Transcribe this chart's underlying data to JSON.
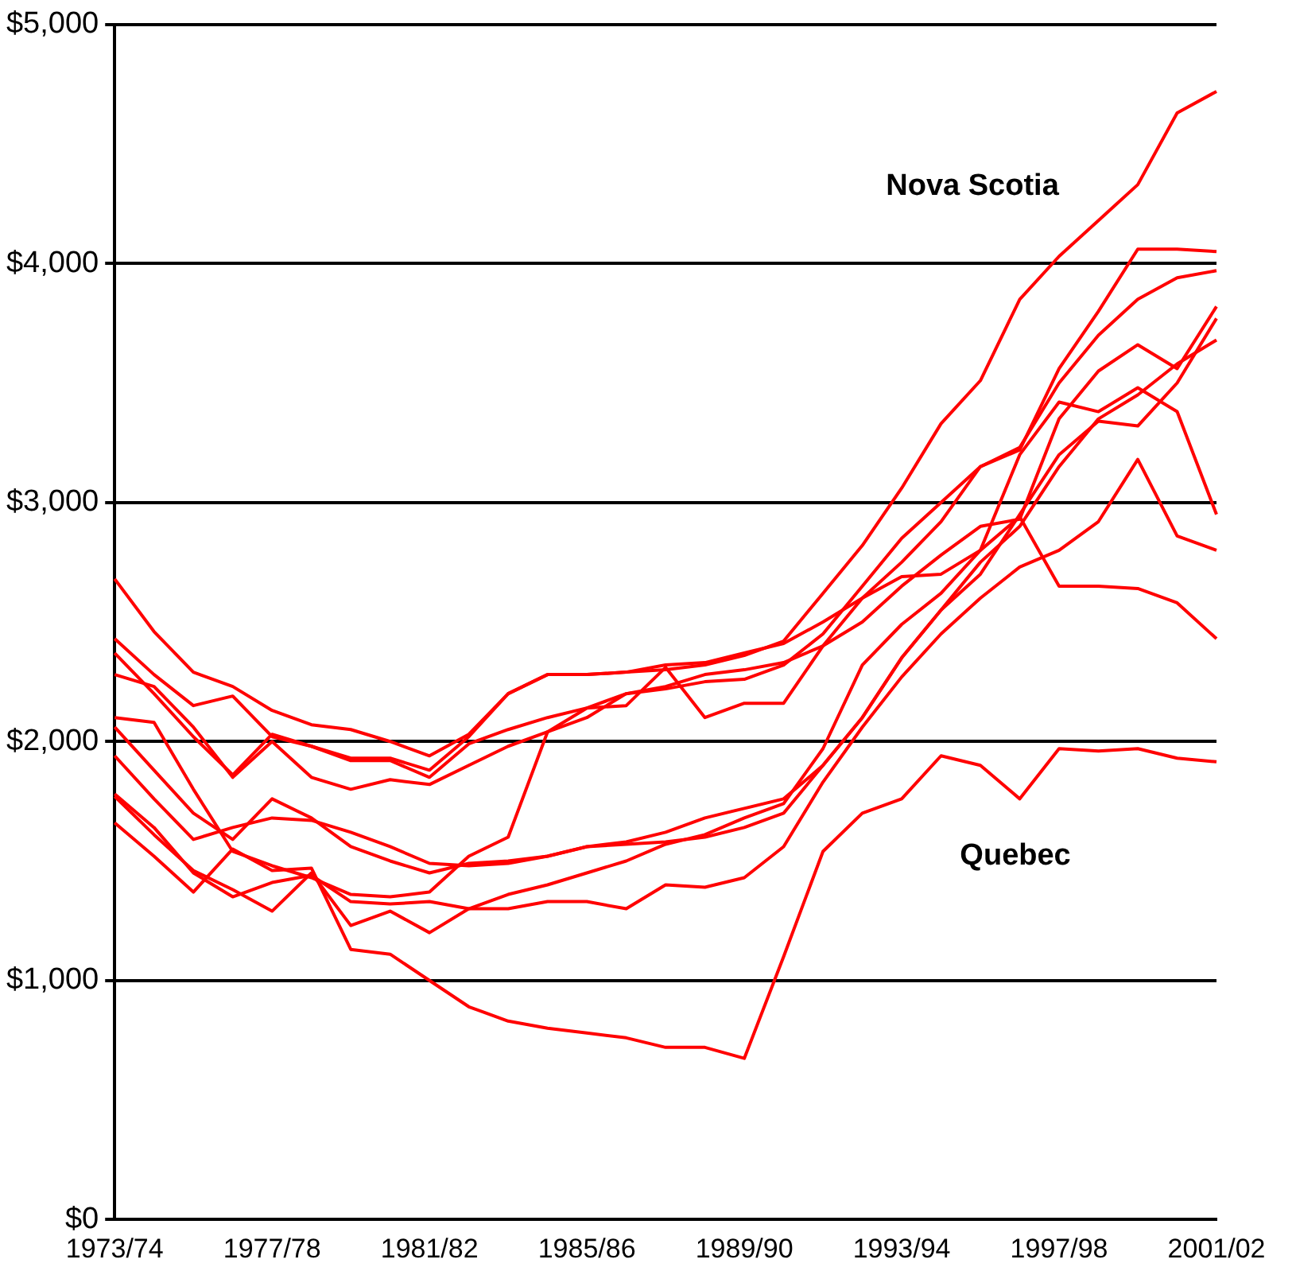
{
  "chart_data": {
    "type": "line",
    "categories": [
      "1973/74",
      null,
      null,
      null,
      "1977/78",
      null,
      null,
      null,
      "1981/82",
      null,
      null,
      null,
      "1985/86",
      null,
      null,
      null,
      "1989/90",
      null,
      null,
      null,
      "1993/94",
      null,
      null,
      null,
      "1997/98",
      null,
      null,
      null,
      "2001/02"
    ],
    "series": [
      {
        "name": "Nova Scotia",
        "color": "#ff0000",
        "values": [
          2680,
          2460,
          2290,
          2230,
          2130,
          2070,
          2050,
          2000,
          1940,
          2030,
          2200,
          2280,
          2280,
          2290,
          2300,
          2320,
          2360,
          2420,
          2620,
          2820,
          3060,
          3330,
          3510,
          3850,
          4030,
          4180,
          4330,
          4630,
          4720
        ]
      },
      {
        "color": "#ff0000",
        "values": [
          2430,
          2280,
          2150,
          2190,
          2020,
          1980,
          1930,
          1930,
          1880,
          2020,
          2200,
          2280,
          2280,
          2290,
          2320,
          2330,
          2370,
          2410,
          2500,
          2600,
          2750,
          2920,
          3150,
          3220,
          3560,
          3800,
          4060,
          4060,
          4050
        ]
      },
      {
        "color": "#ff0000",
        "values": [
          2370,
          2200,
          2020,
          1860,
          2030,
          1980,
          1920,
          1920,
          1850,
          1990,
          2050,
          2100,
          2140,
          2200,
          2220,
          2250,
          2260,
          2320,
          2450,
          2650,
          2850,
          3000,
          3150,
          3230,
          3500,
          3700,
          3850,
          3940,
          3970
        ]
      },
      {
        "color": "#ff0000",
        "values": [
          2280,
          2230,
          2060,
          1850,
          2000,
          1850,
          1800,
          1840,
          1820,
          1900,
          1980,
          2040,
          2140,
          2150,
          2310,
          2100,
          2160,
          2160,
          2400,
          2600,
          2690,
          2700,
          2800,
          3200,
          3420,
          3380,
          3480,
          3380,
          2950
        ]
      },
      {
        "color": "#ff0000",
        "values": [
          2100,
          2080,
          1800,
          1540,
          1480,
          1430,
          1360,
          1350,
          1370,
          1520,
          1600,
          2040,
          2100,
          2200,
          2230,
          2280,
          2300,
          2330,
          2400,
          2500,
          2650,
          2780,
          2900,
          2930,
          3350,
          3550,
          3660,
          3560,
          3820
        ]
      },
      {
        "color": "#ff0000",
        "values": [
          2060,
          1880,
          1700,
          1590,
          1760,
          1680,
          1560,
          1500,
          1450,
          1490,
          1500,
          1520,
          1560,
          1570,
          1580,
          1600,
          1640,
          1700,
          1900,
          2100,
          2350,
          2550,
          2700,
          2950,
          3200,
          3340,
          3320,
          3500,
          3770
        ]
      },
      {
        "color": "#ff0000",
        "values": [
          1940,
          1760,
          1590,
          1640,
          1680,
          1670,
          1620,
          1560,
          1490,
          1480,
          1490,
          1520,
          1560,
          1580,
          1620,
          1680,
          1720,
          1760,
          1900,
          2100,
          2350,
          2550,
          2750,
          2900,
          3150,
          3350,
          3450,
          3580,
          3680
        ]
      },
      {
        "color": "#ff0000",
        "values": [
          1780,
          1640,
          1450,
          1350,
          1410,
          1440,
          1330,
          1320,
          1330,
          1300,
          1300,
          1330,
          1330,
          1300,
          1400,
          1390,
          1430,
          1560,
          1830,
          2060,
          2270,
          2450,
          2600,
          2730,
          2800,
          2920,
          3180,
          2860,
          2800
        ]
      },
      {
        "color": "#ff0000",
        "values": [
          1770,
          1610,
          1460,
          1380,
          1290,
          1450,
          1230,
          1290,
          1200,
          1300,
          1360,
          1400,
          1450,
          1500,
          1570,
          1610,
          1680,
          1740,
          1970,
          2320,
          2490,
          2620,
          2800,
          2940,
          2650,
          2650,
          2640,
          2580,
          2430
        ]
      },
      {
        "name": "Quebec",
        "color": "#ff0000",
        "values": [
          1660,
          1520,
          1370,
          1550,
          1460,
          1470,
          1130,
          1110,
          1000,
          890,
          830,
          800,
          780,
          760,
          720,
          720,
          674,
          1100,
          1540,
          1700,
          1760,
          1940,
          1900,
          1760,
          1970,
          1960,
          1970,
          1930,
          1915
        ]
      }
    ],
    "ylim": [
      0,
      5000
    ],
    "yticks": [
      {
        "value": 0,
        "label": "$0"
      },
      {
        "value": 1000,
        "label": "$1,000"
      },
      {
        "value": 2000,
        "label": "$2,000"
      },
      {
        "value": 3000,
        "label": "$3,000"
      },
      {
        "value": 4000,
        "label": "$4,000"
      },
      {
        "value": 5000,
        "label": "$5,000"
      }
    ],
    "grid": "y",
    "legend": false,
    "marker": "none",
    "line_style": "solid"
  }
}
